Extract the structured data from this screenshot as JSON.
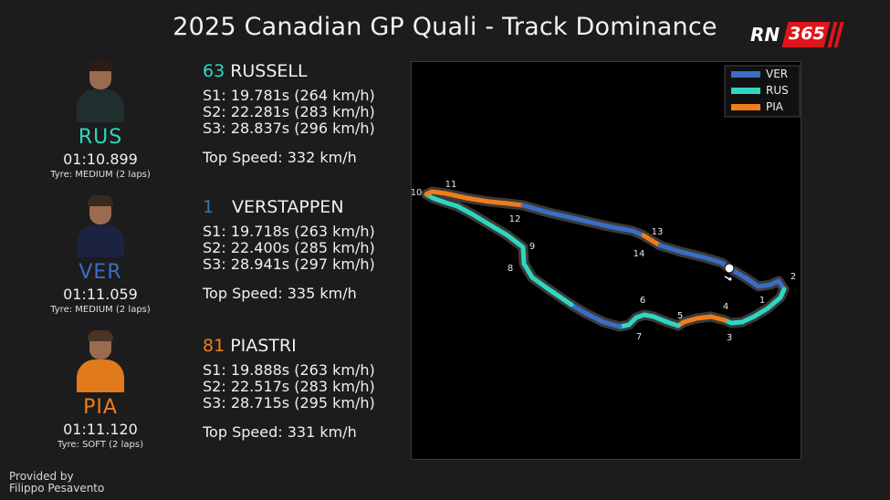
{
  "title": "2025 Canadian GP Quali - Track Dominance",
  "logo": {
    "letters": "RN",
    "number": "365"
  },
  "colors": {
    "VER": "#3b6dc4",
    "RUS": "#2fd7c0",
    "PIA": "#f07d1a",
    "track": "#3a3a3a"
  },
  "drivers": [
    {
      "code": "RUS",
      "number": "63",
      "name": "RUSSELL",
      "lap": "01:10.899",
      "tyre": "Tyre: MEDIUM (2 laps)",
      "s1": "S1:  19.781s  (264 km/h)",
      "s2": "S2:  22.281s  (283 km/h)",
      "s3": "S3:  28.837s  (296 km/h)",
      "top": "Top Speed: 332 km/h",
      "color": "#2fd7c0"
    },
    {
      "code": "VER",
      "number": "1",
      "name": "VERSTAPPEN",
      "lap": "01:11.059",
      "tyre": "Tyre: MEDIUM (2 laps)",
      "s1": "S1:  19.718s  (263 km/h)",
      "s2": "S2:  22.400s  (285 km/h)",
      "s3": "S3:  28.941s  (297 km/h)",
      "top": "Top Speed: 335 km/h",
      "color": "#3b6dc4"
    },
    {
      "code": "PIA",
      "number": "81",
      "name": "PIASTRI",
      "lap": "01:11.120",
      "tyre": "Tyre: SOFT (2 laps)",
      "s1": "S1:  19.888s  (263 km/h)",
      "s2": "S2:  22.517s  (283 km/h)",
      "s3": "S3:  28.715s  (295 km/h)",
      "top": "Top Speed: 331 km/h",
      "color": "#f07d1a"
    }
  ],
  "chart_data": {
    "type": "line",
    "legend": [
      "VER",
      "RUS",
      "PIA"
    ],
    "legend_position": "top-right",
    "turn_labels": [
      "1",
      "2",
      "3",
      "4",
      "5",
      "6",
      "7",
      "8",
      "9",
      "10",
      "11",
      "12",
      "13",
      "14"
    ],
    "segments": [
      {
        "from_turn": "start",
        "to_turn": "2",
        "fastest": "VER"
      },
      {
        "from_turn": "2",
        "to_turn": "4",
        "fastest": "RUS"
      },
      {
        "from_turn": "4",
        "to_turn": "5",
        "fastest": "PIA"
      },
      {
        "from_turn": "5",
        "to_turn": "7",
        "fastest": "RUS"
      },
      {
        "from_turn": "7",
        "to_turn": "8",
        "fastest": "VER"
      },
      {
        "from_turn": "8",
        "to_turn": "10",
        "fastest": "RUS"
      },
      {
        "from_turn": "10",
        "to_turn": "11",
        "fastest": "PIA"
      },
      {
        "from_turn": "11",
        "to_turn": "12",
        "fastest": "PIA"
      },
      {
        "from_turn": "12",
        "to_turn": "13",
        "fastest": "VER"
      },
      {
        "from_turn": "13",
        "to_turn": "14",
        "fastest": "PIA"
      },
      {
        "from_turn": "14",
        "to_turn": "finish",
        "fastest": "VER"
      }
    ]
  },
  "credit": {
    "line1": "Provided by",
    "line2": "Filippo Pesavento"
  }
}
